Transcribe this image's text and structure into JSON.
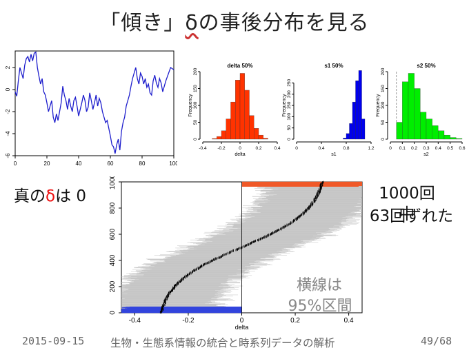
{
  "slide": {
    "title_pre": "「傾き」",
    "title_symbol": "δ",
    "title_post": "の事後分布を見る",
    "true_delta_pre": "真の",
    "true_delta_symbol": "δ",
    "true_delta_post": "は 0",
    "miss_line1": "1000回中",
    "miss_line2": "63回ずれた",
    "ci_note_line1": "横線は",
    "ci_note_line2": "95%区間",
    "footer_date": "2015-09-15",
    "footer_title": "生物・生態系情報の統合と時系列データの解析",
    "footer_page": "49/68"
  },
  "colors": {
    "series": "#1d1dcc",
    "delta_hist": "#ff3300",
    "s1_hist": "#0000ee",
    "s2_hist": "#00ee00",
    "ci_gray": "#bdbdbd",
    "ci_high": "#f05a28",
    "ci_low": "#3344dd",
    "median_tick": "#000000"
  },
  "chart_data": [
    {
      "type": "line",
      "x": [
        0,
        1,
        2,
        3,
        4,
        5,
        6,
        7,
        8,
        9,
        10,
        11,
        12,
        13,
        14,
        15,
        16,
        17,
        18,
        19,
        20,
        21,
        22,
        23,
        24,
        25,
        26,
        27,
        28,
        29,
        30,
        31,
        32,
        33,
        34,
        35,
        36,
        37,
        38,
        39,
        40,
        41,
        42,
        43,
        44,
        45,
        46,
        47,
        48,
        49,
        50,
        51,
        52,
        53,
        54,
        55,
        56,
        57,
        58,
        59,
        60,
        61,
        62,
        63,
        64,
        65,
        66,
        67,
        68,
        69,
        70,
        71,
        72,
        73,
        74,
        75,
        76,
        77,
        78,
        79,
        80,
        81,
        82,
        83,
        84,
        85,
        86,
        87,
        88,
        89,
        90,
        91,
        92,
        93,
        94,
        95,
        96,
        97,
        98,
        99,
        100
      ],
      "y": [
        -0.2,
        -0.6,
        0.8,
        2.0,
        1.5,
        1.0,
        2.2,
        2.8,
        3.0,
        2.5,
        3.2,
        2.6,
        3.3,
        3.4,
        2.0,
        1.2,
        0.5,
        1.0,
        -0.2,
        -0.5,
        -1.2,
        -2.0,
        -1.5,
        -1.0,
        -2.5,
        -3.0,
        -2.2,
        -2.8,
        -2.0,
        -1.2,
        0.3,
        -0.5,
        -1.0,
        -1.8,
        -0.8,
        -1.5,
        -2.0,
        -1.0,
        -0.7,
        -1.5,
        -2.4,
        -1.8,
        -1.2,
        -0.5,
        -1.0,
        -2.0,
        -1.6,
        -0.3,
        -1.0,
        -1.8,
        -1.2,
        -0.5,
        -1.5,
        -0.8,
        -1.2,
        -2.0,
        -2.5,
        -3.0,
        -2.8,
        -3.5,
        -4.2,
        -5.0,
        -5.2,
        -5.8,
        -5.0,
        -4.5,
        -5.5,
        -3.8,
        -3.0,
        -2.5,
        -1.5,
        -1.0,
        -0.5,
        0.3,
        1.0,
        1.5,
        2.0,
        1.0,
        0.5,
        1.5,
        1.2,
        0.5,
        1.0,
        0.2,
        0.5,
        -0.3,
        -0.5,
        0.8,
        1.3,
        0.6,
        0.2,
        1.0,
        0.6,
        -0.2,
        0.3,
        0.8,
        1.2,
        1.6,
        2.0,
        1.9,
        1.8
      ],
      "xlim": [
        0,
        100
      ],
      "ylim": [
        -6,
        3.5
      ],
      "xticks": [
        0,
        20,
        40,
        60,
        80,
        100
      ],
      "yticks": [
        -6,
        -4,
        -2,
        0,
        2
      ]
    },
    {
      "type": "bar",
      "title": "delta 50%",
      "xlabel": "delta",
      "ylabel": "Frequency",
      "bin_edges": [
        -0.3,
        -0.25,
        -0.2,
        -0.15,
        -0.1,
        -0.05,
        0.0,
        0.05,
        0.1,
        0.15,
        0.2,
        0.25,
        0.3
      ],
      "values": [
        2,
        8,
        25,
        60,
        110,
        175,
        195,
        145,
        70,
        32,
        12,
        3
      ],
      "xlim": [
        -0.4,
        0.4
      ],
      "ylim": [
        0,
        200
      ],
      "xticks": [
        -0.4,
        -0.2,
        0.0,
        0.2,
        0.4
      ],
      "yticks": [
        0,
        50,
        100,
        150,
        200
      ]
    },
    {
      "type": "bar",
      "title": "s1 50%",
      "xlabel": "s1",
      "ylabel": "Frequency",
      "bin_edges": [
        0.75,
        0.8,
        0.85,
        0.9,
        0.95,
        1.0,
        1.05,
        1.1
      ],
      "values": [
        5,
        25,
        70,
        165,
        260,
        305,
        90
      ],
      "xlim": [
        0,
        1.2
      ],
      "ylim": [
        0,
        300
      ],
      "xticks": [
        0.0,
        0.4,
        0.8,
        1.2
      ],
      "yticks": [
        0,
        50,
        100,
        150,
        200,
        250
      ]
    },
    {
      "type": "bar",
      "title": "s2 50%",
      "xlabel": "s2",
      "ylabel": "Frequency",
      "bin_edges": [
        0.05,
        0.1,
        0.15,
        0.2,
        0.25,
        0.3,
        0.35,
        0.4,
        0.45,
        0.5,
        0.55,
        0.6
      ],
      "values": [
        50,
        170,
        195,
        150,
        80,
        60,
        40,
        25,
        12,
        5,
        2
      ],
      "xlim": [
        0,
        0.6
      ],
      "ylim": [
        0,
        200
      ],
      "xticks": [
        0.0,
        0.1,
        0.2,
        0.3,
        0.4,
        0.5,
        0.6
      ],
      "yticks": [
        0,
        50,
        100,
        150,
        200
      ],
      "reference_line": 0.05
    },
    {
      "type": "scatter",
      "xlabel": "delta",
      "n": 1000,
      "median_range": [
        -0.32,
        0.32
      ],
      "ci_halfwidth_approx": 0.2,
      "missed_low": 32,
      "missed_high": 31,
      "xlim": [
        -0.45,
        0.45
      ],
      "ylim": [
        0,
        1000
      ],
      "xticks": [
        -0.4,
        -0.2,
        0.0,
        0.2,
        0.4
      ],
      "yticks": [
        0,
        200,
        400,
        600,
        800,
        1000
      ],
      "reference_line": 0.0
    }
  ]
}
